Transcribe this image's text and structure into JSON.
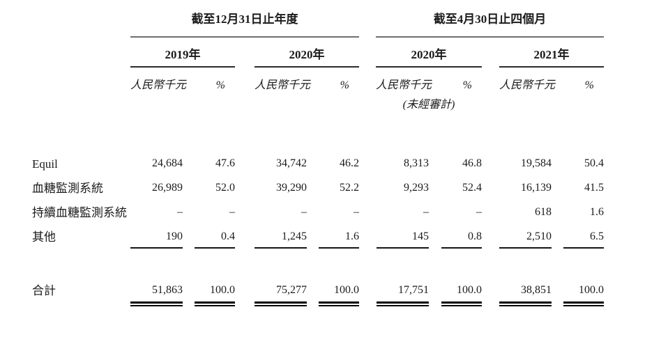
{
  "table": {
    "groups": [
      {
        "title": "截至12月31日止年度",
        "years": [
          "2019年",
          "2020年"
        ]
      },
      {
        "title": "截至4月30日止四個月",
        "years": [
          "2020年",
          "2021年"
        ]
      }
    ],
    "columns": {
      "amount": "人民幣千元",
      "percent": "%"
    },
    "unaudited_note": "(未經審計)",
    "rows": [
      {
        "label": "Equil",
        "values": [
          "24,684",
          "47.6",
          "34,742",
          "46.2",
          "8,313",
          "46.8",
          "19,584",
          "50.4"
        ]
      },
      {
        "label": "血糖監測系統",
        "values": [
          "26,989",
          "52.0",
          "39,290",
          "52.2",
          "9,293",
          "52.4",
          "16,139",
          "41.5"
        ]
      },
      {
        "label": "持續血糖監測系統",
        "values": [
          "–",
          "–",
          "–",
          "–",
          "–",
          "–",
          "618",
          "1.6"
        ]
      },
      {
        "label": "其他",
        "values": [
          "190",
          "0.4",
          "1,245",
          "1.6",
          "145",
          "0.8",
          "2,510",
          "6.5"
        ]
      }
    ],
    "total": {
      "label": "合計",
      "values": [
        "51,863",
        "100.0",
        "75,277",
        "100.0",
        "17,751",
        "100.0",
        "38,851",
        "100.0"
      ]
    },
    "colors": {
      "group_rule": "#6e6e6e",
      "year_rule": "#2b2b2b",
      "underline": "#151515",
      "text": "#1b1b1b"
    }
  }
}
